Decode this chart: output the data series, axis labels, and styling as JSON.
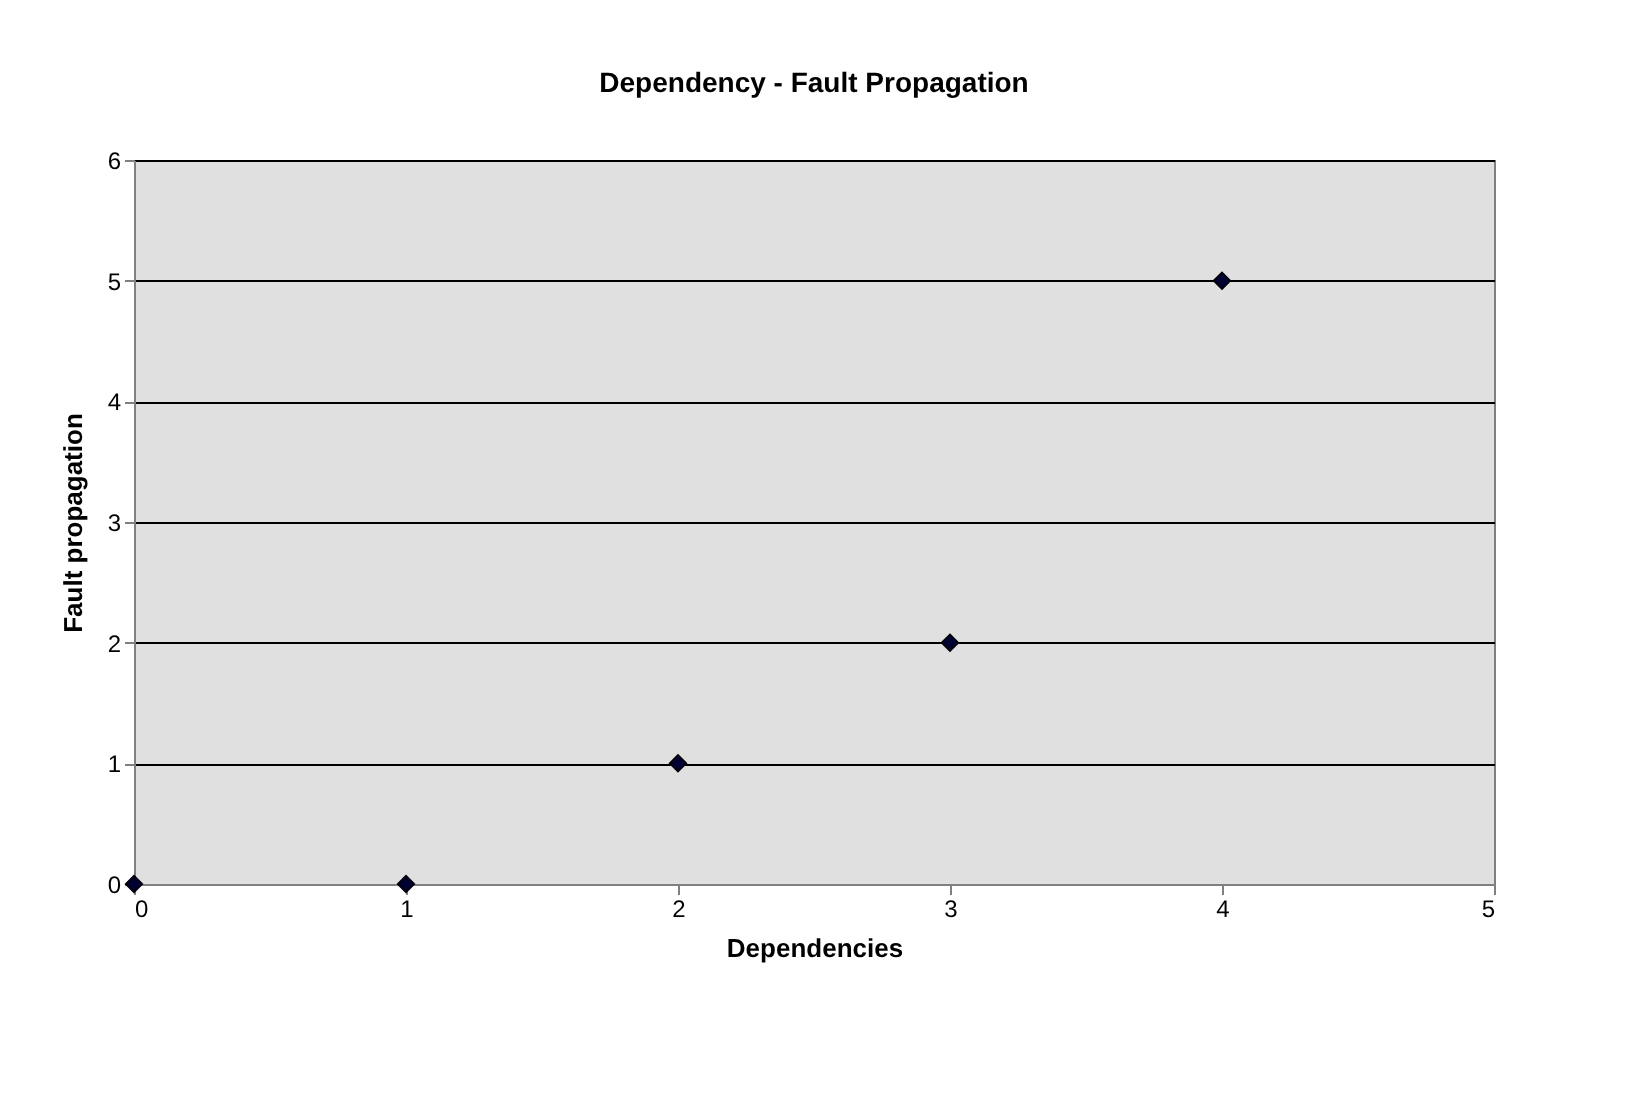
{
  "chart_data": {
    "type": "scatter",
    "title": "Dependency - Fault Propagation",
    "xlabel": "Dependencies",
    "ylabel": "Fault propagation",
    "x": [
      0,
      1,
      2,
      3,
      4
    ],
    "series": [
      {
        "color": "#000033",
        "values": [
          0,
          0,
          1,
          2,
          5
        ]
      }
    ],
    "xlim": [
      0,
      5
    ],
    "xticks": [
      0,
      1,
      2,
      3,
      4,
      5
    ],
    "ylim": [
      0,
      6
    ],
    "yticks": [
      0,
      1,
      2,
      3,
      4,
      5,
      6
    ],
    "grid": "y",
    "marker": "diamond"
  }
}
